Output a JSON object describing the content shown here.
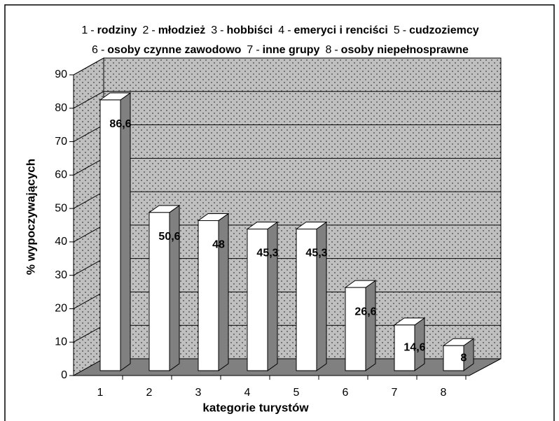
{
  "chart_data": {
    "type": "bar3d",
    "legend": [
      {
        "key": "1",
        "name": "rodziny"
      },
      {
        "key": "2",
        "name": "młodzież"
      },
      {
        "key": "3",
        "name": "hobbiści"
      },
      {
        "key": "4",
        "name": "emeryci i renciści"
      },
      {
        "key": "5",
        "name": "cudzoziemcy"
      },
      {
        "key": "6",
        "name": "osoby czynne zawodowo"
      },
      {
        "key": "7",
        "name": "inne grupy"
      },
      {
        "key": "8",
        "name": "osoby niepełnosprawne"
      }
    ],
    "key_separator": "-",
    "categories": [
      "1",
      "2",
      "3",
      "4",
      "5",
      "6",
      "7",
      "8"
    ],
    "values": [
      86.6,
      50.6,
      48,
      45.3,
      45.3,
      26.6,
      14.6,
      8
    ],
    "value_labels": [
      "86,6",
      "50,6",
      "48",
      "45,3",
      "45,3",
      "26,6",
      "14,6",
      "8"
    ],
    "xlabel": "kategorie turystów",
    "ylabel": "% wypoczywających",
    "ylim": [
      0,
      90
    ],
    "yticks": [
      0,
      10,
      20,
      30,
      40,
      50,
      60,
      70,
      80,
      90
    ],
    "grid": true,
    "color": "#ffffff",
    "side_color": "#808080"
  }
}
